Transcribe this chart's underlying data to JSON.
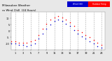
{
  "title_left": "Milwaukee Weather",
  "title_right": "Outdoor Temp",
  "subtitle": "vs Wind Chill  (24 Hours)",
  "background_color": "#e8e8e8",
  "plot_bg_color": "#ffffff",
  "grid_color": "#aaaaaa",
  "temp_color": "#ff0000",
  "windchill_color": "#0000cc",
  "legend_blue_label": "Wind Chill",
  "legend_red_label": "Outdoor Temp",
  "xlim": [
    0,
    24
  ],
  "ylim": [
    -15,
    15
  ],
  "yticks": [
    -10,
    -5,
    0,
    5,
    10
  ],
  "xticks": [
    1,
    3,
    5,
    7,
    9,
    11,
    13,
    15,
    17,
    19,
    21,
    23
  ],
  "hours": [
    0,
    1,
    2,
    3,
    4,
    5,
    6,
    7,
    8,
    9,
    10,
    11,
    12,
    13,
    14,
    15,
    16,
    17,
    18,
    19,
    20,
    21,
    22,
    23
  ],
  "temp": [
    -8,
    -8,
    -9,
    -9,
    -9,
    -8,
    -7,
    -3,
    2,
    6,
    9,
    11,
    12,
    11,
    9,
    7,
    4,
    1,
    -1,
    -3,
    -5,
    -7,
    -9,
    -11
  ],
  "windchill": [
    -10,
    -10,
    -11,
    -11,
    -12,
    -11,
    -10,
    -6,
    -2,
    2,
    5,
    8,
    9,
    8,
    6,
    4,
    1,
    -2,
    -4,
    -6,
    -8,
    -10,
    -12,
    -13
  ]
}
